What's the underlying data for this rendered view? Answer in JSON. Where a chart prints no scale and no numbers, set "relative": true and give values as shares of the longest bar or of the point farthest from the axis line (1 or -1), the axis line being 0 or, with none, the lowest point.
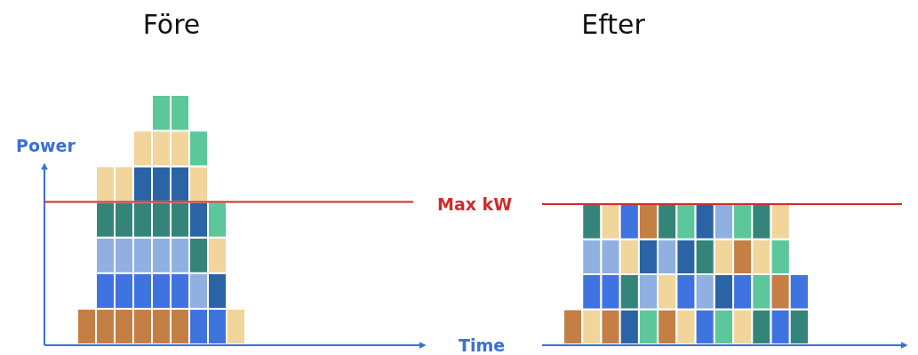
{
  "chart_data": [
    {
      "type": "bar",
      "stacked": true,
      "relative": true,
      "title": "Före",
      "ylabel": "Power",
      "categories": [
        null,
        null,
        null,
        null,
        null,
        null,
        null,
        null,
        null
      ],
      "series": [
        {
          "values": [
            0.1428,
            0.1428,
            0.1428,
            0.1428,
            0.1428,
            0.1428,
            0.1428,
            0.1428,
            0.1428
          ],
          "colors": [
            "#c47f45",
            "#c47f45",
            "#c47f45",
            "#c47f45",
            "#c47f45",
            "#c47f45",
            "#3f73e0",
            "#3f73e0",
            "#f2d59b"
          ]
        },
        {
          "values": [
            null,
            0.1428,
            0.1428,
            0.1428,
            0.1428,
            0.1428,
            0.1428,
            0.1428,
            null
          ],
          "colors": [
            null,
            "#3f73e0",
            "#3f73e0",
            "#3f73e0",
            "#3f73e0",
            "#3f73e0",
            "#8fb0e0",
            "#2a64a6",
            null
          ]
        },
        {
          "values": [
            null,
            0.1428,
            0.1428,
            0.1428,
            0.1428,
            0.1428,
            0.1428,
            0.1428,
            null
          ],
          "colors": [
            null,
            "#8fb0e0",
            "#8fb0e0",
            "#8fb0e0",
            "#8fb0e0",
            "#8fb0e0",
            "#35847a",
            "#f2d59b",
            null
          ]
        },
        {
          "values": [
            null,
            0.1428,
            0.1428,
            0.1428,
            0.1428,
            0.1428,
            0.1428,
            0.1428,
            null
          ],
          "colors": [
            null,
            "#35847a",
            "#35847a",
            "#35847a",
            "#35847a",
            "#35847a",
            "#2a64a6",
            "#5cc79a",
            null
          ]
        },
        {
          "values": [
            null,
            0.1428,
            0.1428,
            0.1428,
            0.1428,
            0.1428,
            0.1428,
            null,
            null
          ],
          "colors": [
            null,
            "#f2d59b",
            "#f2d59b",
            "#2a64a6",
            "#2a64a6",
            "#2a64a6",
            "#f2d59b",
            null,
            null
          ]
        },
        {
          "values": [
            null,
            null,
            null,
            0.1428,
            0.1428,
            0.1428,
            0.1428,
            null,
            null
          ],
          "colors": [
            null,
            null,
            null,
            "#f2d59b",
            "#f2d59b",
            "#f2d59b",
            "#5cc79a",
            null,
            null
          ]
        },
        {
          "values": [
            null,
            null,
            null,
            null,
            0.1432,
            0.1432,
            null,
            null,
            null
          ],
          "colors": [
            null,
            null,
            null,
            null,
            "#5cc79a",
            "#5cc79a",
            null,
            null,
            null
          ]
        }
      ],
      "ref_lines": [
        {
          "axis": "y",
          "value": 0.571,
          "color": "#d42a2a"
        }
      ]
    },
    {
      "type": "bar",
      "stacked": true,
      "relative": true,
      "title": "Efter",
      "xlabel": "Time",
      "categories": [
        null,
        null,
        null,
        null,
        null,
        null,
        null,
        null,
        null,
        null,
        null,
        null,
        null
      ],
      "series": [
        {
          "values": [
            0.25,
            0.25,
            0.25,
            0.25,
            0.25,
            0.25,
            0.25,
            0.25,
            0.25,
            0.25,
            0.25,
            0.25,
            0.25
          ],
          "colors": [
            "#c47f45",
            "#f2d59b",
            "#c47f45",
            "#2a64a6",
            "#5cc79a",
            "#c47f45",
            "#f2d59b",
            "#3f73e0",
            "#5cc79a",
            "#f2d59b",
            "#35847a",
            "#3f73e0",
            "#35847a"
          ]
        },
        {
          "values": [
            null,
            0.25,
            0.25,
            0.25,
            0.25,
            0.25,
            0.25,
            0.25,
            0.25,
            0.25,
            0.25,
            0.25,
            0.25
          ],
          "colors": [
            null,
            "#3f73e0",
            "#3f73e0",
            "#35847a",
            "#8fb0e0",
            "#f2d59b",
            "#3f73e0",
            "#8fb0e0",
            "#2a64a6",
            "#3f73e0",
            "#5cc79a",
            "#c47f45",
            "#3f73e0"
          ]
        },
        {
          "values": [
            null,
            0.25,
            0.25,
            0.25,
            0.25,
            0.25,
            0.25,
            0.25,
            0.25,
            0.25,
            0.25,
            0.25,
            null
          ],
          "colors": [
            null,
            "#8fb0e0",
            "#8fb0e0",
            "#f2d59b",
            "#2a64a6",
            "#8fb0e0",
            "#2a64a6",
            "#35847a",
            "#f2d59b",
            "#c47f45",
            "#f2d59b",
            "#5cc79a",
            null
          ]
        },
        {
          "values": [
            null,
            0.25,
            0.25,
            0.25,
            0.25,
            0.25,
            0.25,
            0.25,
            0.25,
            0.25,
            0.25,
            0.25,
            null
          ],
          "colors": [
            null,
            "#35847a",
            "#f2d59b",
            "#3f73e0",
            "#c47f45",
            "#35847a",
            "#5cc79a",
            "#2a64a6",
            "#8fb0e0",
            "#5cc79a",
            "#35847a",
            "#f2d59b",
            null
          ]
        }
      ],
      "ref_lines": [
        {
          "axis": "y",
          "value": 1,
          "label": "Max kW",
          "color": "#d42a2a"
        }
      ]
    }
  ]
}
